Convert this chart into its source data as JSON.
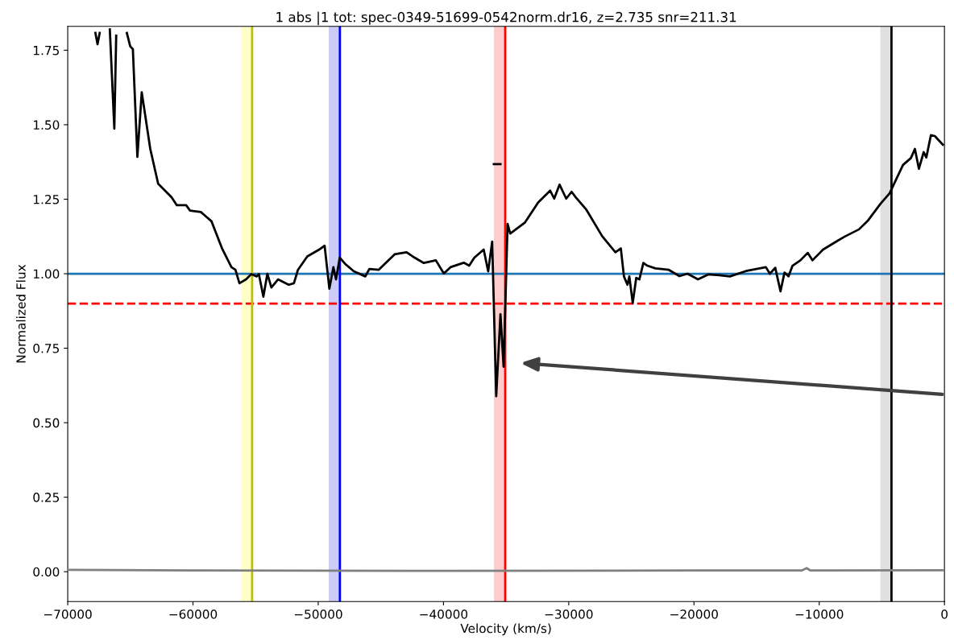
{
  "chart_data": {
    "type": "line",
    "title": "1 abs |1 tot: spec-0349-51699-0542norm.dr16, z=2.735 snr=211.31",
    "xlabel": "Velocity (km/s)",
    "ylabel": "Normalized Flux",
    "xlim": [
      -70000,
      0
    ],
    "ylim": [
      -0.1,
      1.83
    ],
    "xticks": [
      {
        "value": -70000,
        "label": "−70000"
      },
      {
        "value": -60000,
        "label": "−60000"
      },
      {
        "value": -50000,
        "label": "−50000"
      },
      {
        "value": -40000,
        "label": "−40000"
      },
      {
        "value": -30000,
        "label": "−30000"
      },
      {
        "value": -20000,
        "label": "−20000"
      },
      {
        "value": -10000,
        "label": "−10000"
      },
      0
    ],
    "yticks": [
      {
        "value": 0,
        "label": "0.00"
      },
      {
        "value": 0.25,
        "label": "0.25"
      },
      {
        "value": 0.5,
        "label": "0.50"
      },
      {
        "value": 0.75,
        "label": "0.75"
      },
      {
        "value": 1.0,
        "label": "1.00"
      },
      {
        "value": 1.25,
        "label": "1.25"
      },
      {
        "value": 1.5,
        "label": "1.50"
      },
      {
        "value": 1.75,
        "label": "1.75"
      }
    ],
    "grid": false,
    "line_style": "solid",
    "marker": "none",
    "series": [
      {
        "color": "#000000",
        "x": [
          -67790,
          -67620,
          -67450,
          -67340,
          -66640,
          -66280,
          -66130,
          -66070,
          -65540,
          -65280,
          -65010,
          -64800,
          -64440,
          -64090,
          -63410,
          -62780,
          -61710,
          -61290,
          -60550,
          -60230,
          -59370,
          -58520,
          -57680,
          -56930,
          -56610,
          -56290,
          -55760,
          -55340,
          -54910,
          -54740,
          -54380,
          -54060,
          -53740,
          -53210,
          -52360,
          -51940,
          -51620,
          -50870,
          -49920,
          -49490,
          -49110,
          -48790,
          -48580,
          -48280,
          -47800,
          -47160,
          -46240,
          -45920,
          -45180,
          -43900,
          -42950,
          -42310,
          -41570,
          -40610,
          -39970,
          -39440,
          -38380,
          -37950,
          -37530,
          -36790,
          -36430,
          -36110,
          -35790,
          -35450,
          -35200,
          -34880,
          -34670,
          -33510,
          -32440,
          -31480,
          -31160,
          -30730,
          -30200,
          -29770,
          -29450,
          -28610,
          -27330,
          -26270,
          -25840,
          -25590,
          -25310,
          -25160,
          -24890,
          -24610,
          -24360,
          -24040,
          -23720,
          -23080,
          -22010,
          -21160,
          -20520,
          -19680,
          -18830,
          -17980,
          -17130,
          -15850,
          -14260,
          -13940,
          -13510,
          -13090,
          -12770,
          -12450,
          -12130,
          -11500,
          -10920,
          -10540,
          -9690,
          -8630,
          -7990,
          -6820,
          -6080,
          -5120,
          -4380,
          -3310,
          -2680,
          -2360,
          -2040,
          -1660,
          -1450,
          -1080,
          -770,
          -130
        ],
        "values": [
          1.808,
          1.77,
          1.808,
          null,
          1.82,
          1.487,
          1.799,
          null,
          null,
          1.808,
          1.763,
          1.754,
          1.392,
          1.609,
          1.419,
          1.302,
          1.257,
          1.23,
          1.23,
          1.212,
          1.207,
          1.176,
          1.085,
          1.022,
          1.013,
          0.968,
          0.981,
          0.999,
          0.991,
          0.999,
          0.923,
          1.0,
          0.954,
          0.981,
          0.963,
          0.968,
          1.013,
          1.058,
          1.081,
          1.094,
          0.95,
          1.022,
          0.981,
          1.054,
          1.031,
          1.008,
          0.991,
          1.016,
          1.013,
          1.065,
          1.072,
          1.054,
          1.036,
          1.045,
          1.001,
          1.022,
          1.037,
          1.027,
          1.054,
          1.081,
          1.008,
          1.108,
          0.589,
          0.864,
          0.688,
          1.167,
          1.135,
          1.171,
          1.239,
          1.279,
          1.252,
          1.299,
          1.252,
          1.275,
          1.257,
          1.216,
          1.126,
          1.072,
          1.085,
          0.991,
          0.963,
          0.991,
          0.902,
          0.986,
          0.981,
          1.036,
          1.027,
          1.018,
          1.013,
          0.992,
          1.0,
          0.981,
          0.998,
          0.995,
          0.991,
          1.009,
          1.022,
          1.0,
          1.02,
          0.941,
          1.004,
          0.991,
          1.027,
          1.045,
          1.07,
          1.045,
          1.081,
          1.108,
          1.124,
          1.149,
          1.18,
          1.234,
          1.27,
          1.365,
          1.388,
          1.419,
          1.352,
          1.408,
          1.39,
          1.465,
          1.462,
          1.433
        ]
      },
      {
        "color": "#808080",
        "x": [
          -70000,
          -60000,
          -40000,
          -20000,
          -11400,
          -11000,
          -10700,
          0
        ],
        "values": [
          0.006,
          0.004,
          0.003,
          0.004,
          0.004,
          0.012,
          0.004,
          0.005
        ]
      },
      {
        "color": "#000000",
        "x": [
          -35980,
          -35450
        ],
        "values": [
          1.368,
          1.368
        ]
      }
    ],
    "ref_lines": [
      {
        "axis": "y",
        "value": 1.0,
        "color": "#1f77b4",
        "line_style": "solid"
      },
      {
        "axis": "y",
        "value": 0.9,
        "color": "#ff0000",
        "line_style": "dashed"
      },
      {
        "axis": "x",
        "value": -55280,
        "color": "#bfbf00",
        "line_style": "solid"
      },
      {
        "axis": "x",
        "value": -48270,
        "color": "#0000ff",
        "line_style": "solid"
      },
      {
        "axis": "x",
        "value": -35070,
        "color": "#ff0000",
        "line_style": "solid"
      },
      {
        "axis": "x",
        "value": -4230,
        "color": "#000000",
        "line_style": "solid"
      }
    ],
    "bands": [
      {
        "axis": "x",
        "from": -56170,
        "to": -55280,
        "color": "#ffffc8"
      },
      {
        "axis": "x",
        "from": -49160,
        "to": -48270,
        "color": "#ccccf6"
      },
      {
        "axis": "x",
        "from": -35970,
        "to": -35070,
        "color": "#ffcccc"
      },
      {
        "axis": "x",
        "from": -5120,
        "to": -4230,
        "color": "#e0e0e0"
      }
    ]
  }
}
